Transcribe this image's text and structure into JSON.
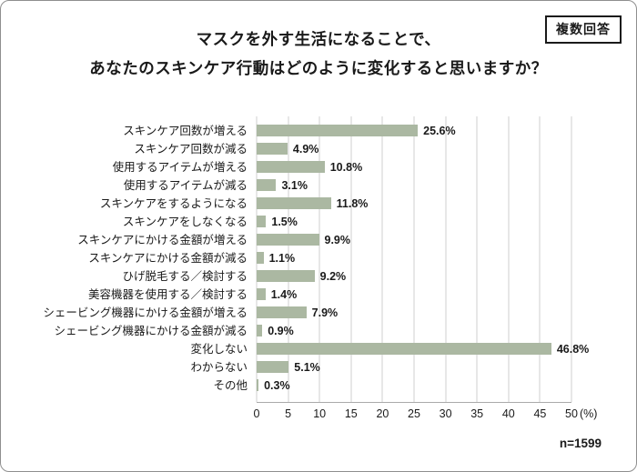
{
  "badge": {
    "label": "複数回答"
  },
  "title": {
    "line1": "マスクを外す生活になることで、",
    "line2": "あなたのスキンケア行動はどのように変化すると思いますか？"
  },
  "footnote": {
    "sample_size": "n=1599"
  },
  "chart_data": {
    "type": "bar",
    "orientation": "horizontal",
    "title": "マスクを外す生活になることで、あなたのスキンケア行動はどのように変化すると思いますか？",
    "categories": [
      "スキンケア回数が増える",
      "スキンケア回数が減る",
      "使用するアイテムが増える",
      "使用するアイテムが減る",
      "スキンケアをするようになる",
      "スキンケアをしなくなる",
      "スキンケアにかける金額が増える",
      "スキンケアにかける金額が減る",
      "ひげ脱毛する／検討する",
      "美容機器を使用する／検討する",
      "シェービング機器にかける金額が増える",
      "シェービング機器にかける金額が減る",
      "変化しない",
      "わからない",
      "その他"
    ],
    "values": [
      25.6,
      4.9,
      10.8,
      3.1,
      11.8,
      1.5,
      9.9,
      1.1,
      9.2,
      1.4,
      7.9,
      0.9,
      46.8,
      5.1,
      0.3
    ],
    "value_labels": [
      "25.6%",
      "4.9%",
      "10.8%",
      "3.1%",
      "11.8%",
      "1.5%",
      "9.9%",
      "1.1%",
      "9.2%",
      "1.4%",
      "7.9%",
      "0.9%",
      "46.8%",
      "5.1%",
      "0.3%"
    ],
    "xlim": [
      0,
      50
    ],
    "tick_labels": [
      "0",
      "5",
      "10",
      "15",
      "20",
      "25",
      "30",
      "35",
      "40",
      "45",
      "50"
    ],
    "unit_label": "(%)",
    "bar_color": "#abb8a2",
    "grid": true,
    "legend_position": "none"
  }
}
